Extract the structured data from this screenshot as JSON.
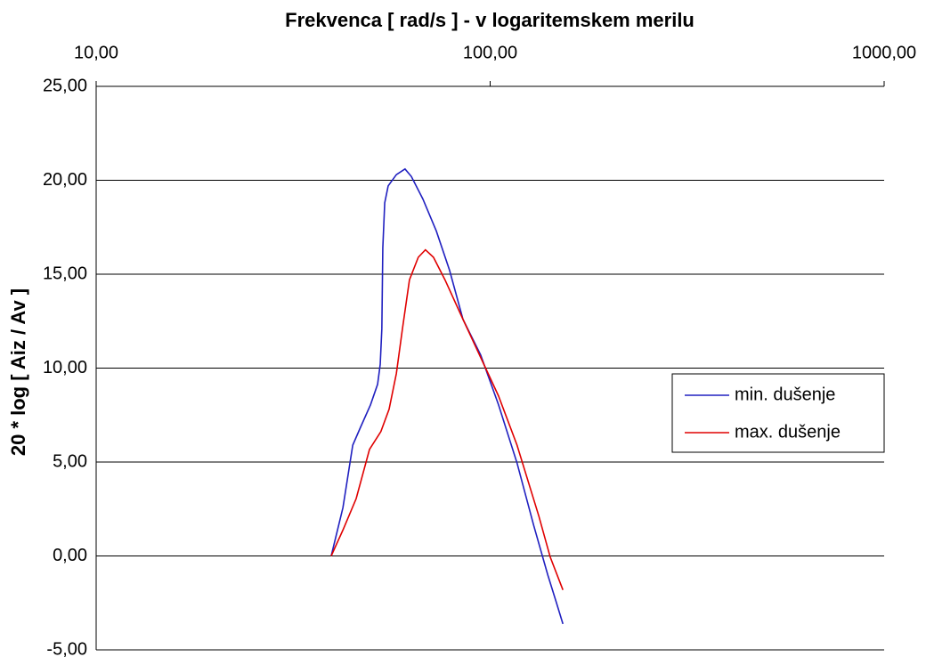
{
  "chart_data": {
    "type": "line",
    "title": "Frekvenca  [ rad/s  ] - v logaritemskem merilu",
    "y_label": "20 * log [ Aiz / Av ]",
    "x_scale": "log",
    "xlim": [
      10,
      1000
    ],
    "xticks": [
      {
        "value": 10,
        "label": "10,00"
      },
      {
        "value": 100,
        "label": "100,00"
      },
      {
        "value": 1000,
        "label": "1000,00"
      }
    ],
    "ylim": [
      -5,
      25
    ],
    "yticks": [
      {
        "value": -5,
        "label": "-5,00"
      },
      {
        "value": 0,
        "label": "0,00"
      },
      {
        "value": 5,
        "label": "5,00"
      },
      {
        "value": 10,
        "label": "10,00"
      },
      {
        "value": 15,
        "label": "15,00"
      },
      {
        "value": 20,
        "label": "20,00"
      },
      {
        "value": 25,
        "label": "25,00"
      }
    ],
    "grid": true,
    "legend": "right",
    "series": [
      {
        "name": "min. dušenje",
        "color": "#2020c0",
        "x": [
          39.5,
          42.3,
          44.8,
          46.9,
          49.7,
          51.8,
          52.6,
          53.1,
          53.4,
          54.0,
          55.1,
          57.8,
          60.8,
          63.1,
          67.5,
          73.0,
          78.9,
          85.3,
          94.6,
          105,
          117,
          129,
          140,
          147,
          153
        ],
        "values": [
          0,
          2.57,
          5.9,
          6.86,
          8.05,
          9.14,
          10.2,
          12.1,
          16.4,
          18.8,
          19.7,
          20.3,
          20.6,
          20.2,
          19.0,
          17.3,
          15.2,
          12.6,
          10.7,
          8.05,
          4.95,
          1.62,
          -1.0,
          -2.43,
          -3.62
        ]
      },
      {
        "name": "max. dušenje",
        "color": "#e00000",
        "x": [
          39.5,
          42.3,
          45.7,
          49.4,
          52.8,
          55.4,
          57.8,
          59.9,
          62.4,
          65.7,
          68.5,
          71.8,
          76.8,
          85.3,
          105,
          117,
          133,
          142,
          153
        ],
        "values": [
          0,
          1.38,
          3.05,
          5.67,
          6.62,
          7.81,
          9.71,
          12.1,
          14.7,
          15.9,
          16.3,
          15.9,
          14.7,
          12.6,
          8.52,
          5.9,
          2.1,
          -0.05,
          -1.81
        ]
      }
    ]
  }
}
